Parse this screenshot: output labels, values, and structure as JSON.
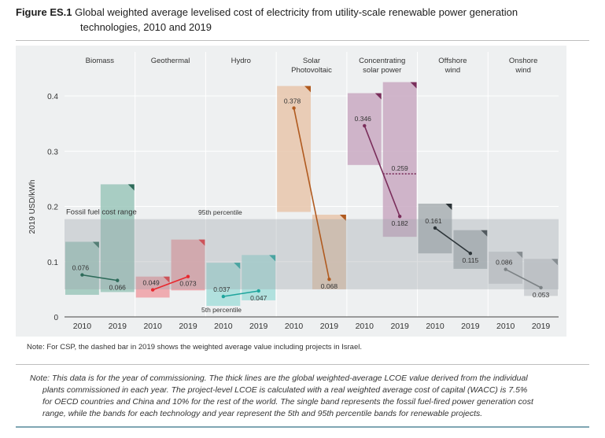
{
  "figure": {
    "number": "Figure ES.1",
    "title_line1": "Global weighted average levelised cost of electricity from utility-scale renewable power generation",
    "title_line2": "technologies, 2010 and 2019"
  },
  "chart_data": {
    "type": "range-band-line",
    "ylabel": "2019 USD/kWh",
    "ylim": [
      0,
      0.45
    ],
    "yticks": [
      "0",
      "0.1",
      "0.2",
      "0.3",
      "0.4"
    ],
    "ytick_values": [
      0,
      0.1,
      0.2,
      0.3,
      0.4
    ],
    "fossil_fuel_range": {
      "label": "Fossil fuel cost range",
      "low": 0.05,
      "high": 0.177
    },
    "percentile_labels": {
      "p95": "95th percentile",
      "p5": "5th percentile"
    },
    "years": [
      "2010",
      "2019"
    ],
    "technologies": [
      {
        "name_line1": "Biomass",
        "name_line2": "",
        "color": "#2e6b5a",
        "band_color": "#9bc7bb",
        "values": [
          0.076,
          0.066
        ],
        "labels": [
          "0.076",
          "0.066"
        ],
        "bands": [
          [
            0.04,
            0.136
          ],
          [
            0.045,
            0.24
          ]
        ]
      },
      {
        "name_line1": "Geothermal",
        "name_line2": "",
        "color": "#e8282e",
        "band_color": "#eea0a6",
        "values": [
          0.049,
          0.073
        ],
        "labels": [
          "0.049",
          "0.073"
        ],
        "bands": [
          [
            0.035,
            0.073
          ],
          [
            0.048,
            0.14
          ]
        ]
      },
      {
        "name_line1": "Hydro",
        "name_line2": "",
        "color": "#1fa59d",
        "band_color": "#a6dedb",
        "values": [
          0.037,
          0.047
        ],
        "labels": [
          "0.037",
          "0.047"
        ],
        "bands": [
          [
            0.02,
            0.098
          ],
          [
            0.03,
            0.112
          ]
        ]
      },
      {
        "name_line1": "Solar",
        "name_line2": "Photovoltaic",
        "color": "#b05a1f",
        "band_color": "#e8c6ac",
        "values": [
          0.378,
          0.068
        ],
        "labels": [
          "0.378",
          "0.068"
        ],
        "bands": [
          [
            0.19,
            0.418
          ],
          [
            0.05,
            0.185
          ]
        ]
      },
      {
        "name_line1": "Concentrating",
        "name_line2": "solar power",
        "color": "#7a2e5b",
        "band_color": "#c9a9c2",
        "values": [
          0.346,
          0.182
        ],
        "labels": [
          "0.346",
          "0.182"
        ],
        "bands": [
          [
            0.275,
            0.405
          ],
          [
            0.145,
            0.425
          ]
        ],
        "israel_weighted_2019": {
          "value": 0.259,
          "label": "0.259"
        }
      },
      {
        "name_line1": "Offshore",
        "name_line2": "wind",
        "color": "#2c3438",
        "band_color": "#a8afb3",
        "values": [
          0.161,
          0.115
        ],
        "labels": [
          "0.161",
          "0.115"
        ],
        "bands": [
          [
            0.115,
            0.205
          ],
          [
            0.087,
            0.157
          ]
        ]
      },
      {
        "name_line1": "Onshore",
        "name_line2": "wind",
        "color": "#7c8285",
        "band_color": "#c9cdd0",
        "values": [
          0.086,
          0.053
        ],
        "labels": [
          "0.086",
          "0.053"
        ],
        "bands": [
          [
            0.06,
            0.118
          ],
          [
            0.038,
            0.105
          ]
        ]
      }
    ]
  },
  "notes": {
    "csp_note": "Note: For CSP, the dashed bar in 2019 shows the weighted average value including projects in Israel.",
    "main_line1": "Note: This data is for the year of commissioning. The thick lines are the global weighted-average LCOE value derived from the individual",
    "main_line2": "plants commissioned in each year. The project-level LCOE is calculated with a real weighted average cost of capital (WACC) is 7.5%",
    "main_line3": "for OECD countries and China and 10% for the rest of the world. The single band represents the fossil fuel-fired power generation cost",
    "main_line4": "range, while the bands for each technology and year represent the 5th and 95th percentile bands for renewable projects."
  }
}
